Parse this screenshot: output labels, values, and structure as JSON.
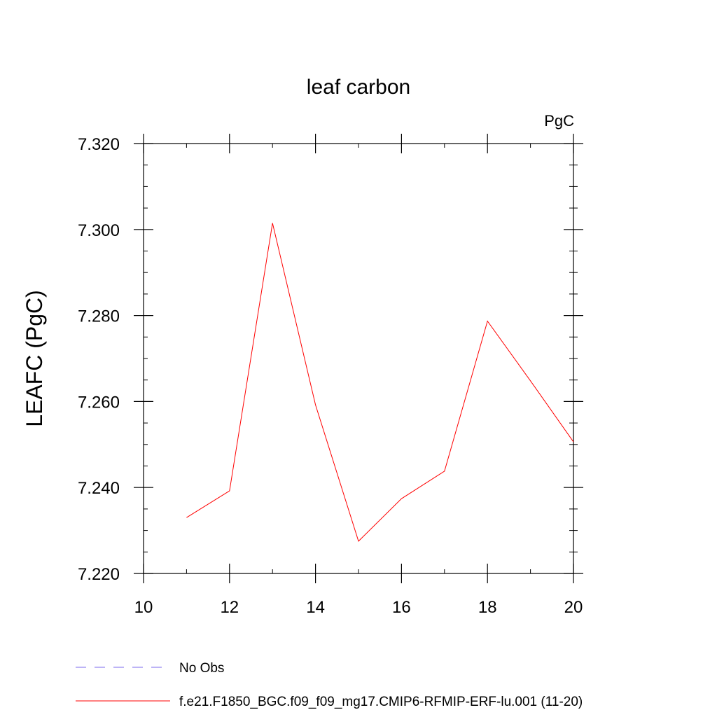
{
  "chart_data": {
    "type": "line",
    "title": "leaf carbon",
    "units_label": "PgC",
    "xlabel": "",
    "ylabel": "LEAFC  (PgC)",
    "xlim": [
      10,
      20
    ],
    "ylim": [
      7.22,
      7.32
    ],
    "x_ticks": [
      10,
      12,
      14,
      16,
      18,
      20
    ],
    "x_tick_labels": [
      "10",
      "12",
      "14",
      "16",
      "18",
      "20"
    ],
    "y_ticks": [
      7.22,
      7.24,
      7.26,
      7.28,
      7.3,
      7.32
    ],
    "y_tick_labels": [
      "7.220",
      "7.240",
      "7.260",
      "7.280",
      "7.300",
      "7.320"
    ],
    "grid": false,
    "legend_position": "bottom",
    "series": [
      {
        "name": "f.e21.F1850_BGC.f09_f09_mg17.CMIP6-RFMIP-ERF-lu.001 (11-20)",
        "color": "#ff0000",
        "dash": "solid",
        "x": [
          11,
          12,
          13,
          14,
          15,
          16,
          17,
          18,
          19,
          20
        ],
        "y": [
          7.233,
          7.2392,
          7.3015,
          7.2592,
          7.2275,
          7.2374,
          7.2438,
          7.2787,
          7.2648,
          7.2506
        ]
      }
    ],
    "legend_entries": [
      {
        "label": "No Obs",
        "color": "#7b68ee",
        "dash": "dashed"
      },
      {
        "label": "f.e21.F1850_BGC.f09_f09_mg17.CMIP6-RFMIP-ERF-lu.001 (11-20)",
        "color": "#ff0000",
        "dash": "solid"
      }
    ]
  }
}
